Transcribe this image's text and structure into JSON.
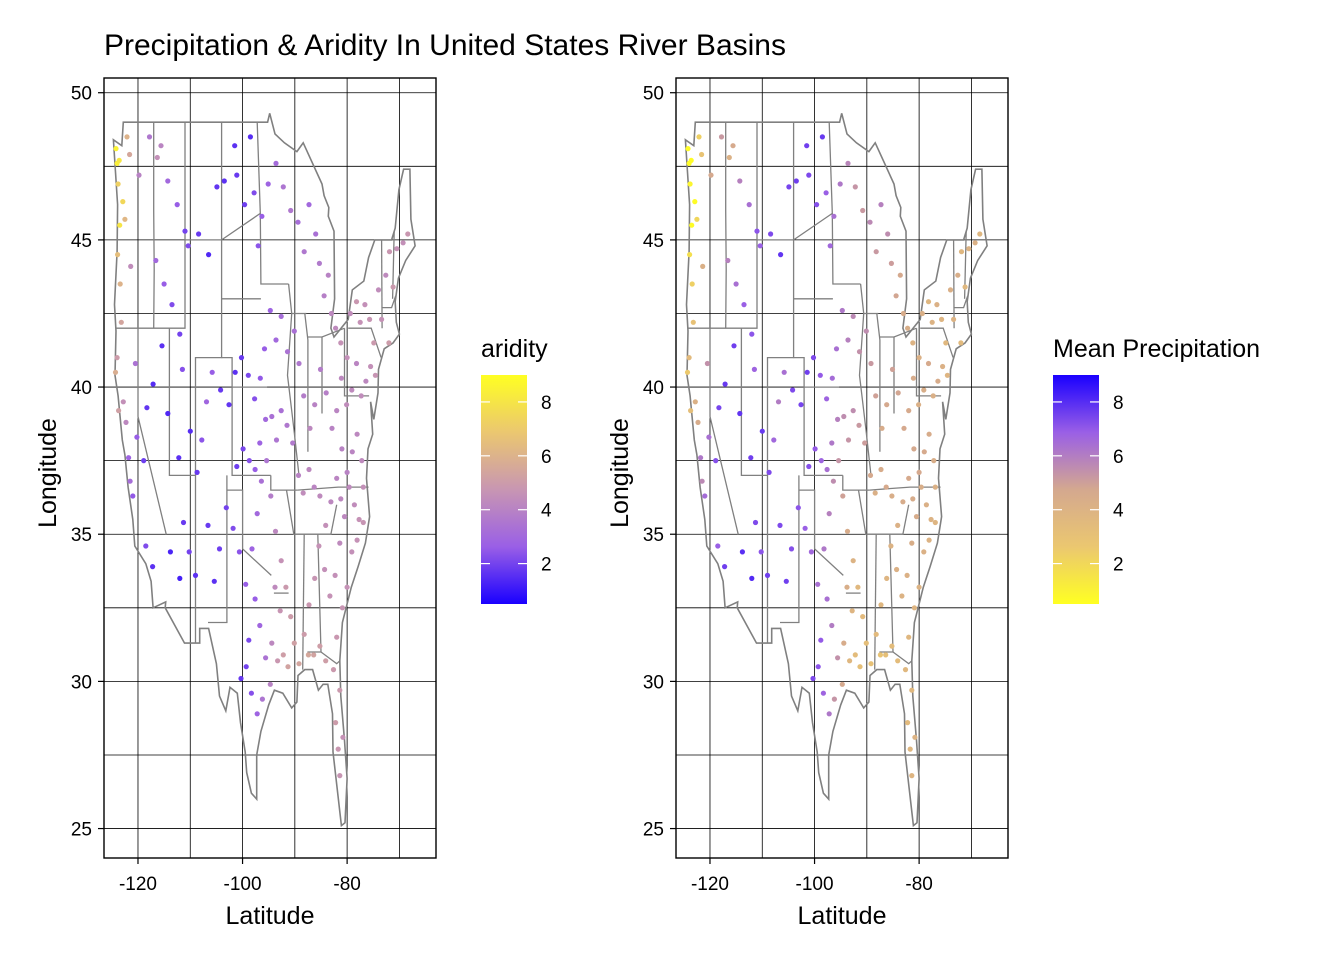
{
  "title": "Precipitation & Aridity In United States River Basins",
  "chart_data": [
    {
      "type": "scatter",
      "xlabel": "Latitude",
      "ylabel": "Longitude",
      "xlim": [
        -126.5,
        -63
      ],
      "ylim": [
        24,
        50.5
      ],
      "xticks": [
        -120,
        -100,
        -80
      ],
      "xtick_labels": [
        "-120",
        "-100",
        "-80"
      ],
      "yticks": [
        25,
        30,
        35,
        40,
        45,
        50
      ],
      "ytick_labels": [
        "25",
        "30",
        "35",
        "40",
        "45",
        "50"
      ],
      "grid": true,
      "legend": {
        "title": "aridity",
        "placement": "right",
        "range": [
          0.5,
          9
        ],
        "ticks": [
          2,
          4,
          6,
          8
        ],
        "tick_labels": [
          "2",
          "4",
          "6",
          "8"
        ],
        "colors": [
          "#1a00ff",
          "#9a5fe6",
          "#c896b2",
          "#ebc770",
          "#ffff22"
        ]
      },
      "basemap": "contiguous United States state boundaries",
      "points_lon_lat_value": [
        [
          -124.2,
          48.1,
          8.5
        ],
        [
          -124.0,
          47.6,
          8.4
        ],
        [
          -123.8,
          46.9,
          7.2
        ],
        [
          -123.5,
          45.5,
          8.0
        ],
        [
          -123.9,
          44.5,
          6.5
        ],
        [
          -123.4,
          43.5,
          6.0
        ],
        [
          -123.2,
          42.2,
          5.4
        ],
        [
          -124.0,
          41.0,
          5.0
        ],
        [
          -122.8,
          39.5,
          4.5
        ],
        [
          -122.3,
          38.8,
          4.2
        ],
        [
          -121.8,
          37.6,
          2.8
        ],
        [
          -121.5,
          36.8,
          3.2
        ],
        [
          -121.0,
          36.3,
          2.5
        ],
        [
          -120.2,
          38.3,
          2.6
        ],
        [
          -118.9,
          37.5,
          1.9
        ],
        [
          -118.5,
          34.6,
          2.2
        ],
        [
          -117.2,
          33.9,
          1.6
        ],
        [
          -119.8,
          47.2,
          4.0
        ],
        [
          -117.8,
          48.5,
          3.6
        ],
        [
          -116.3,
          47.8,
          4.5
        ],
        [
          -115.6,
          48.2,
          4.1
        ],
        [
          -114.3,
          47.0,
          3.0
        ],
        [
          -112.5,
          46.2,
          2.6
        ],
        [
          -111.0,
          45.3,
          2.0
        ],
        [
          -110.4,
          44.8,
          2.2
        ],
        [
          -108.4,
          45.2,
          1.8
        ],
        [
          -106.5,
          44.5,
          1.4
        ],
        [
          -104.9,
          46.8,
          1.7
        ],
        [
          -103.5,
          47.0,
          1.6
        ],
        [
          -101.5,
          48.2,
          1.6
        ],
        [
          -101.1,
          47.2,
          1.8
        ],
        [
          -99.6,
          46.2,
          1.9
        ],
        [
          -98.5,
          48.5,
          1.5
        ],
        [
          -97.8,
          46.6,
          2.2
        ],
        [
          -97.0,
          44.8,
          2.4
        ],
        [
          -96.3,
          45.8,
          2.6
        ],
        [
          -95.1,
          46.9,
          2.8
        ],
        [
          -93.6,
          47.6,
          3.1
        ],
        [
          -92.2,
          46.8,
          3.5
        ],
        [
          -90.8,
          46.0,
          3.6
        ],
        [
          -89.4,
          45.6,
          3.2
        ],
        [
          -88.2,
          44.6,
          3.6
        ],
        [
          -87.3,
          46.2,
          3.0
        ],
        [
          -86.0,
          45.2,
          3.3
        ],
        [
          -85.3,
          44.2,
          3.7
        ],
        [
          -84.4,
          43.1,
          3.9
        ],
        [
          -83.6,
          43.8,
          4.0
        ],
        [
          -83.0,
          42.5,
          4.2
        ],
        [
          -82.2,
          42.0,
          4.3
        ],
        [
          -81.2,
          41.5,
          4.6
        ],
        [
          -80.0,
          41.0,
          4.5
        ],
        [
          -79.4,
          42.5,
          4.4
        ],
        [
          -78.2,
          42.9,
          4.8
        ],
        [
          -77.5,
          42.2,
          4.6
        ],
        [
          -76.6,
          42.8,
          4.5
        ],
        [
          -75.7,
          42.3,
          4.7
        ],
        [
          -74.9,
          41.5,
          4.9
        ],
        [
          -74.0,
          43.3,
          4.4
        ],
        [
          -73.4,
          42.3,
          4.6
        ],
        [
          -72.6,
          43.8,
          4.3
        ],
        [
          -71.9,
          44.6,
          4.8
        ],
        [
          -71.2,
          43.4,
          4.9
        ],
        [
          -70.5,
          44.7,
          4.6
        ],
        [
          -69.3,
          44.9,
          4.5
        ],
        [
          -68.4,
          45.2,
          4.8
        ],
        [
          -72.0,
          41.5,
          5.0
        ],
        [
          -74.6,
          40.4,
          4.7
        ],
        [
          -75.5,
          40.7,
          4.5
        ],
        [
          -76.4,
          40.2,
          4.2
        ],
        [
          -77.3,
          39.7,
          4.4
        ],
        [
          -78.2,
          40.8,
          4.1
        ],
        [
          -79.1,
          39.9,
          4.3
        ],
        [
          -80.1,
          39.4,
          4.4
        ],
        [
          -81.1,
          40.3,
          4.2
        ],
        [
          -82.0,
          39.2,
          4.1
        ],
        [
          -82.9,
          38.6,
          4.0
        ],
        [
          -84.0,
          39.8,
          3.9
        ],
        [
          -85.1,
          40.6,
          3.8
        ],
        [
          -86.2,
          39.4,
          4.0
        ],
        [
          -87.1,
          38.6,
          4.2
        ],
        [
          -88.3,
          39.7,
          3.8
        ],
        [
          -89.2,
          40.8,
          3.6
        ],
        [
          -90.1,
          41.9,
          3.3
        ],
        [
          -91.4,
          41.2,
          3.4
        ],
        [
          -92.6,
          42.4,
          3.2
        ],
        [
          -93.6,
          41.6,
          3.0
        ],
        [
          -94.7,
          42.6,
          2.8
        ],
        [
          -95.8,
          41.3,
          2.6
        ],
        [
          -96.6,
          40.3,
          2.5
        ],
        [
          -97.7,
          39.6,
          2.3
        ],
        [
          -98.9,
          40.4,
          2.1
        ],
        [
          -100.2,
          41.0,
          1.8
        ],
        [
          -101.4,
          40.5,
          1.6
        ],
        [
          -102.6,
          39.4,
          1.7
        ],
        [
          -104.2,
          39.9,
          1.8
        ],
        [
          -105.8,
          40.5,
          2.6
        ],
        [
          -106.9,
          39.5,
          2.9
        ],
        [
          -107.8,
          38.2,
          2.4
        ],
        [
          -108.7,
          37.1,
          1.8
        ],
        [
          -110.0,
          38.5,
          1.5
        ],
        [
          -111.5,
          40.6,
          2.3
        ],
        [
          -112.0,
          41.8,
          2.0
        ],
        [
          -113.5,
          42.8,
          2.2
        ],
        [
          -115.0,
          43.5,
          2.6
        ],
        [
          -116.6,
          44.3,
          3.0
        ],
        [
          -115.4,
          41.4,
          1.6
        ],
        [
          -117.1,
          40.1,
          1.5
        ],
        [
          -118.3,
          39.3,
          1.7
        ],
        [
          -114.3,
          39.1,
          1.4
        ],
        [
          -112.2,
          37.6,
          1.6
        ],
        [
          -111.3,
          35.4,
          1.8
        ],
        [
          -110.2,
          34.4,
          2.0
        ],
        [
          -109.0,
          33.6,
          1.6
        ],
        [
          -112.0,
          33.5,
          1.2
        ],
        [
          -113.8,
          34.4,
          1.3
        ],
        [
          -106.6,
          35.3,
          1.8
        ],
        [
          -105.4,
          33.4,
          1.6
        ],
        [
          -104.4,
          34.5,
          1.9
        ],
        [
          -103.1,
          35.9,
          2.0
        ],
        [
          -101.8,
          35.2,
          2.2
        ],
        [
          -100.6,
          34.4,
          2.4
        ],
        [
          -99.4,
          33.3,
          2.6
        ],
        [
          -98.2,
          34.5,
          2.8
        ],
        [
          -97.2,
          35.7,
          3.0
        ],
        [
          -96.4,
          36.8,
          3.3
        ],
        [
          -95.4,
          37.5,
          3.5
        ],
        [
          -94.6,
          36.3,
          3.8
        ],
        [
          -93.7,
          35.1,
          4.2
        ],
        [
          -92.6,
          34.1,
          4.6
        ],
        [
          -91.7,
          33.2,
          4.9
        ],
        [
          -90.8,
          32.2,
          5.0
        ],
        [
          -90.1,
          31.3,
          5.2
        ],
        [
          -89.2,
          30.6,
          5.4
        ],
        [
          -88.2,
          31.6,
          5.0
        ],
        [
          -87.3,
          32.6,
          4.8
        ],
        [
          -86.2,
          33.5,
          4.7
        ],
        [
          -85.4,
          34.6,
          4.6
        ],
        [
          -84.3,
          33.8,
          4.5
        ],
        [
          -83.3,
          32.9,
          4.6
        ],
        [
          -82.3,
          33.6,
          4.5
        ],
        [
          -81.4,
          34.7,
          4.3
        ],
        [
          -80.5,
          35.6,
          4.2
        ],
        [
          -79.6,
          36.6,
          4.3
        ],
        [
          -78.6,
          36.0,
          4.4
        ],
        [
          -77.7,
          35.5,
          4.6
        ],
        [
          -76.9,
          36.6,
          4.5
        ],
        [
          -77.2,
          37.5,
          4.3
        ],
        [
          -78.1,
          38.4,
          4.2
        ],
        [
          -79.0,
          37.8,
          4.1
        ],
        [
          -80.0,
          37.1,
          4.0
        ],
        [
          -81.0,
          37.9,
          4.0
        ],
        [
          -82.0,
          36.9,
          4.1
        ],
        [
          -83.1,
          36.1,
          4.2
        ],
        [
          -84.1,
          35.3,
          4.5
        ],
        [
          -85.2,
          36.3,
          4.3
        ],
        [
          -86.3,
          36.6,
          4.1
        ],
        [
          -87.3,
          37.2,
          4.2
        ],
        [
          -88.4,
          36.4,
          4.4
        ],
        [
          -89.3,
          37.0,
          4.0
        ],
        [
          -90.4,
          38.1,
          3.7
        ],
        [
          -91.5,
          38.7,
          3.6
        ],
        [
          -92.6,
          39.2,
          3.3
        ],
        [
          -93.5,
          38.2,
          3.5
        ],
        [
          -94.4,
          39.0,
          3.3
        ],
        [
          -95.6,
          38.9,
          3.0
        ],
        [
          -96.7,
          38.1,
          2.8
        ],
        [
          -97.6,
          37.2,
          2.6
        ],
        [
          -98.7,
          37.5,
          2.3
        ],
        [
          -99.9,
          37.9,
          2.1
        ],
        [
          -101.1,
          37.3,
          1.9
        ],
        [
          -97.6,
          32.8,
          2.6
        ],
        [
          -96.7,
          31.9,
          2.9
        ],
        [
          -95.6,
          30.8,
          3.4
        ],
        [
          -94.7,
          29.9,
          4.0
        ],
        [
          -96.2,
          29.4,
          3.5
        ],
        [
          -97.2,
          28.9,
          2.8
        ],
        [
          -98.3,
          29.6,
          2.3
        ],
        [
          -99.3,
          30.5,
          2.0
        ],
        [
          -100.3,
          30.1,
          1.8
        ],
        [
          -98.8,
          31.4,
          2.1
        ],
        [
          -94.4,
          31.3,
          4.2
        ],
        [
          -93.3,
          30.7,
          4.8
        ],
        [
          -92.2,
          30.9,
          5.1
        ],
        [
          -91.3,
          30.5,
          5.3
        ],
        [
          -92.8,
          32.4,
          4.7
        ],
        [
          -93.8,
          33.2,
          4.3
        ],
        [
          -81.4,
          29.7,
          4.9
        ],
        [
          -82.2,
          28.6,
          5.0
        ],
        [
          -81.7,
          27.7,
          4.8
        ],
        [
          -81.4,
          26.8,
          4.7
        ],
        [
          -80.8,
          28.1,
          4.6
        ],
        [
          -82.6,
          30.4,
          4.9
        ],
        [
          -84.1,
          30.7,
          5.1
        ],
        [
          -85.2,
          31.2,
          5.1
        ],
        [
          -86.4,
          30.9,
          5.3
        ],
        [
          -87.4,
          30.9,
          5.5
        ],
        [
          -82.0,
          31.5,
          4.8
        ],
        [
          -80.9,
          32.5,
          4.7
        ],
        [
          -80.0,
          33.2,
          4.6
        ],
        [
          -79.1,
          34.4,
          4.5
        ],
        [
          -78.1,
          34.8,
          4.6
        ],
        [
          -76.9,
          35.4,
          4.7
        ],
        [
          -81.2,
          36.2,
          4.2
        ],
        [
          -120.5,
          40.8,
          3.4
        ],
        [
          -121.4,
          44.1,
          4.4
        ],
        [
          -122.5,
          45.7,
          6.2
        ],
        [
          -122.9,
          46.3,
          7.5
        ],
        [
          -123.6,
          47.7,
          8.1
        ],
        [
          -122.1,
          48.5,
          6.0
        ],
        [
          -121.6,
          47.9,
          5.5
        ],
        [
          -124.3,
          40.5,
          5.8
        ],
        [
          -123.7,
          39.2,
          5.2
        ]
      ]
    },
    {
      "type": "scatter",
      "xlabel": "Latitude",
      "ylabel": "Longitude",
      "xlim": [
        -126.5,
        -63
      ],
      "ylim": [
        24,
        50.5
      ],
      "xticks": [
        -120,
        -100,
        -80
      ],
      "xtick_labels": [
        "-120",
        "-100",
        "-80"
      ],
      "yticks": [
        25,
        30,
        35,
        40,
        45,
        50
      ],
      "ytick_labels": [
        "25",
        "30",
        "35",
        "40",
        "45",
        "50"
      ],
      "grid": true,
      "legend": {
        "title": "Mean Precipitation",
        "placement": "right",
        "range": [
          0.5,
          9
        ],
        "ticks": [
          2,
          4,
          6,
          8
        ],
        "tick_labels": [
          "2",
          "4",
          "6",
          "8"
        ],
        "colors": [
          "#ffff22",
          "#ebc770",
          "#d4a88f",
          "#9a5fe6",
          "#1a00ff"
        ]
      },
      "basemap": "contiguous United States state boundaries",
      "points_lon_lat_value": "same stations as the aridity panel, shaded by mean precipitation"
    }
  ]
}
